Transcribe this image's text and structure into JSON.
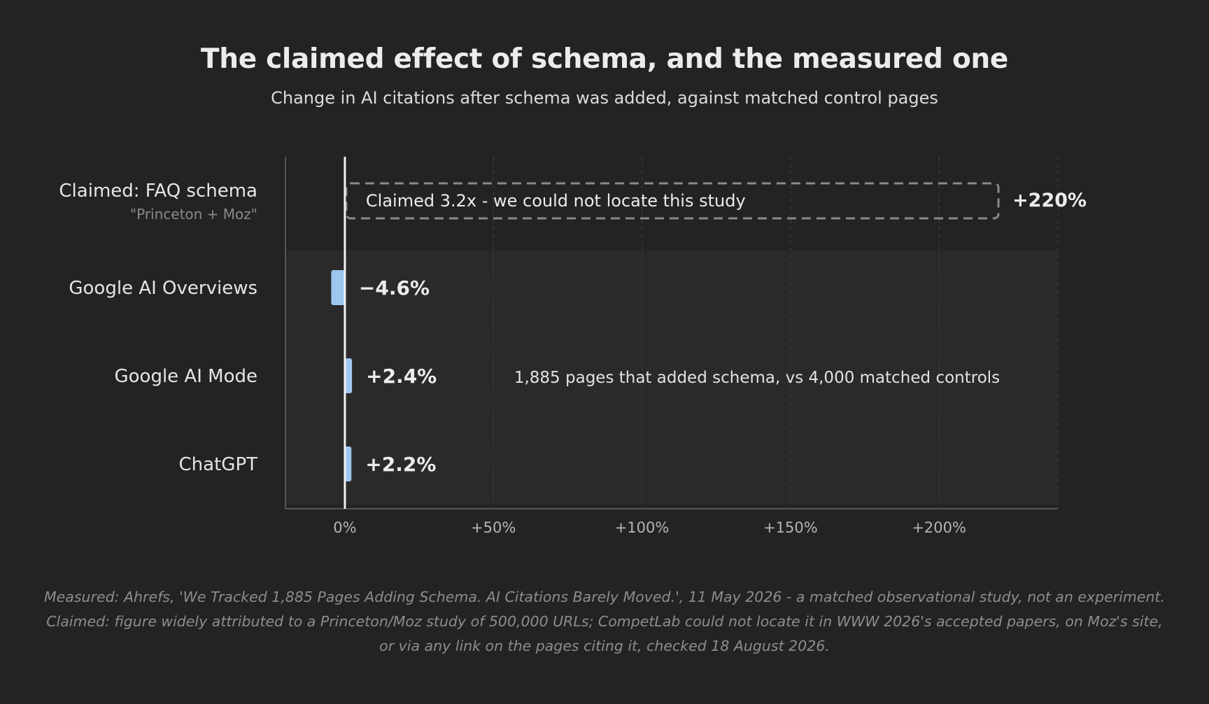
{
  "title": "The claimed effect of schema, and the measured one",
  "subtitle": "Change in AI citations after schema was added, against matched control pages",
  "footnote": "Measured: Ahrefs, 'We Tracked 1,885 Pages Adding Schema. AI Citations Barely Moved.', 11 May 2026 - a matched observational study, not an experiment. Claimed: figure widely attributed to a Princeton/Moz study of 500,000 URLs; CompetLab could not locate it in WWW 2026's accepted papers, on Moz's site, or via any link on the pages citing it, checked 18 August 2026.",
  "colors": {
    "background": "#232323",
    "measured_panel": "#2a2a2a",
    "bar": "#9ec7f0",
    "claimed_outline": "#8a8a8a",
    "zero_line": "#f2f2f2",
    "grid": "#3e3e3e",
    "tick_label": "#b5b5b5"
  },
  "chart_data": {
    "type": "bar",
    "orientation": "horizontal",
    "categories": [
      "Claimed: FAQ schema",
      "Google AI Overviews",
      "Google AI Mode",
      "ChatGPT"
    ],
    "category_sublabels": [
      "\"Princeton + Moz\"",
      "",
      "",
      ""
    ],
    "values": [
      220,
      -4.6,
      2.4,
      2.2
    ],
    "value_labels": [
      "+220%",
      "−4.6%",
      "+2.4%",
      "+2.2%"
    ],
    "claimed_annotation": "Claimed 3.2x - we could not locate this study",
    "measured_annotation": "1,885 pages that added schema, vs 4,000 matched controls",
    "xlim": [
      -20,
      240
    ],
    "xticks": [
      0,
      50,
      100,
      150,
      200
    ],
    "xtick_labels": [
      "0%",
      "+50%",
      "+100%",
      "+150%",
      "+200%"
    ],
    "grid": "vertical dashed",
    "legend": "none"
  }
}
